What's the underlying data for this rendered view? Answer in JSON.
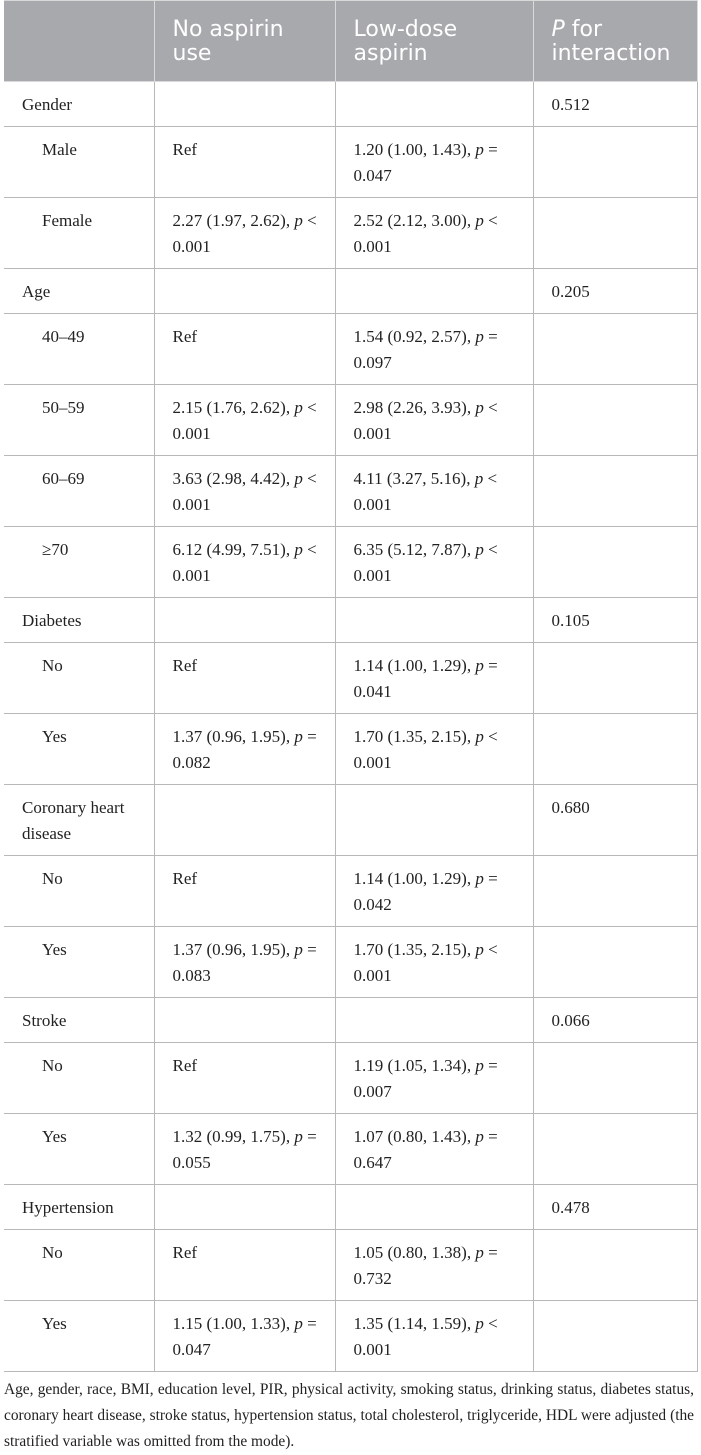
{
  "header": {
    "col1": "",
    "col2": "No aspirin use",
    "col3": "Low-dose aspirin",
    "col4_italic": "P",
    "col4_rest": " for interaction"
  },
  "rows": [
    {
      "label": "Gender",
      "c2": "",
      "c3": "",
      "p": "0.512",
      "type": "group"
    },
    {
      "label": "Male",
      "c2": "Ref",
      "c3": "1.20 (1.00, 1.43), p = 0.047",
      "p": "",
      "type": "sub"
    },
    {
      "label": "Female",
      "c2": "2.27 (1.97, 2.62), p < 0.001",
      "c3": "2.52 (2.12, 3.00), p < 0.001",
      "p": "",
      "type": "sub"
    },
    {
      "label": "Age",
      "c2": "",
      "c3": "",
      "p": "0.205",
      "type": "group"
    },
    {
      "label": "40–49",
      "c2": "Ref",
      "c3": "1.54 (0.92, 2.57), p = 0.097",
      "p": "",
      "type": "sub"
    },
    {
      "label": "50–59",
      "c2": "2.15 (1.76, 2.62), p < 0.001",
      "c3": "2.98 (2.26, 3.93), p < 0.001",
      "p": "",
      "type": "sub"
    },
    {
      "label": "60–69",
      "c2": "3.63 (2.98, 4.42), p < 0.001",
      "c3": "4.11 (3.27, 5.16), p < 0.001",
      "p": "",
      "type": "sub"
    },
    {
      "label": "≥70",
      "c2": "6.12 (4.99, 7.51), p < 0.001",
      "c3": "6.35 (5.12, 7.87), p < 0.001",
      "p": "",
      "type": "sub"
    },
    {
      "label": "Diabetes",
      "c2": "",
      "c3": "",
      "p": "0.105",
      "type": "group"
    },
    {
      "label": "No",
      "c2": "Ref",
      "c3": "1.14 (1.00, 1.29), p = 0.041",
      "p": "",
      "type": "sub"
    },
    {
      "label": "Yes",
      "c2": "1.37 (0.96, 1.95), p = 0.082",
      "c3": "1.70 (1.35, 2.15), p < 0.001",
      "p": "",
      "type": "sub"
    },
    {
      "label": "Coronary heart disease",
      "c2": "",
      "c3": "",
      "p": "0.680",
      "type": "group tall"
    },
    {
      "label": "No",
      "c2": "Ref",
      "c3": "1.14 (1.00, 1.29), p = 0.042",
      "p": "",
      "type": "sub"
    },
    {
      "label": "Yes",
      "c2": "1.37 (0.96, 1.95), p = 0.083",
      "c3": "1.70 (1.35, 2.15), p < 0.001",
      "p": "",
      "type": "sub"
    },
    {
      "label": "Stroke",
      "c2": "",
      "c3": "",
      "p": "0.066",
      "type": "group"
    },
    {
      "label": "No",
      "c2": "Ref",
      "c3": "1.19 (1.05, 1.34), p = 0.007",
      "p": "",
      "type": "sub"
    },
    {
      "label": "Yes",
      "c2": "1.32 (0.99, 1.75), p = 0.055",
      "c3": "1.07 (0.80, 1.43), p = 0.647",
      "p": "",
      "type": "sub"
    },
    {
      "label": "Hypertension",
      "c2": "",
      "c3": "",
      "p": "0.478",
      "type": "group"
    },
    {
      "label": "No",
      "c2": "Ref",
      "c3": "1.05 (0.80, 1.38), p = 0.732",
      "p": "",
      "type": "sub"
    },
    {
      "label": "Yes",
      "c2": "1.15 (1.00, 1.33), p = 0.047",
      "c3": "1.35 (1.14, 1.59), p < 0.001",
      "p": "",
      "type": "sub"
    }
  ],
  "footnote": "Age, gender, race, BMI, education level, PIR, physical activity, smoking status, drinking status, diabetes status, coronary heart disease, stroke status, hypertension status, total cholesterol, triglyceride, HDL were adjusted (the stratified variable was omitted from the mode)."
}
